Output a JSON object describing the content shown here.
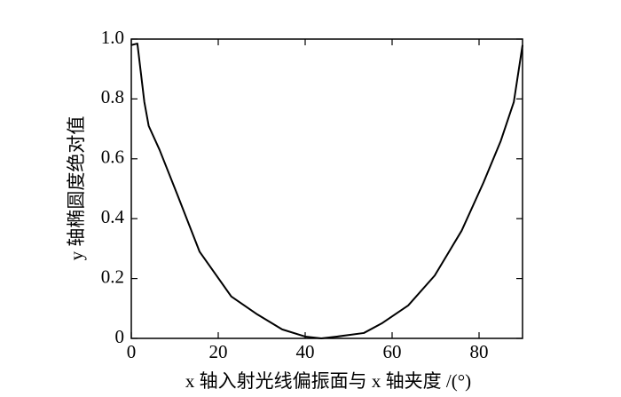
{
  "chart_data": {
    "type": "line",
    "xlabel": "x 轴入射光线偏振面与 x 轴夹度 /(°)",
    "ylabel": "y 轴椭圆度绝对值",
    "x": [
      0,
      1.4,
      3,
      4,
      6.5,
      10.6,
      15.7,
      23,
      29,
      34.7,
      40,
      43.7,
      47.3,
      53.5,
      57.6,
      63.7,
      69.8,
      76,
      81,
      85,
      88,
      90
    ],
    "series": [
      {
        "color": "#000000",
        "values": [
          0.98,
          0.985,
          0.79,
          0.71,
          0.63,
          0.48,
          0.29,
          0.14,
          0.08,
          0.03,
          0.006,
          0,
          0.006,
          0.018,
          0.05,
          0.11,
          0.21,
          0.36,
          0.52,
          0.66,
          0.79,
          0.98
        ]
      }
    ],
    "xlim": [
      0,
      90
    ],
    "xticks": [
      0,
      20,
      40,
      60,
      80
    ],
    "ylim": [
      0,
      1
    ],
    "yticks": [
      0,
      0.2,
      0.4,
      0.6,
      0.8,
      {
        "value": 1,
        "label": "1.0"
      }
    ]
  }
}
